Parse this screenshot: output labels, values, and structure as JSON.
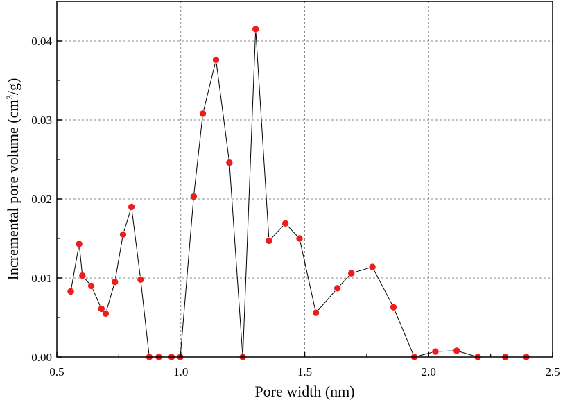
{
  "chart_data": {
    "type": "scatter",
    "title": "",
    "xlabel": "Pore width (nm)",
    "ylabel": {
      "prefix": "Incremental pore volume (cm",
      "superscript": "3",
      "suffix": "/g)"
    },
    "xlim": [
      0.5,
      2.5
    ],
    "ylim": [
      0,
      0.045
    ],
    "xticks": [
      0.5,
      1.0,
      1.5,
      2.0,
      2.5
    ],
    "xtick_labels": [
      "0.5",
      "1.0",
      "1.5",
      "2.0",
      "2.5"
    ],
    "yticks": [
      0,
      0.01,
      0.02,
      0.03,
      0.04
    ],
    "ytick_labels": [
      "0.00",
      "0.01",
      "0.02",
      "0.03",
      "0.04"
    ],
    "grid": true,
    "legend": "none",
    "series": [
      {
        "line_color": "#000000",
        "marker_color": "#ee1c1c",
        "marker": "circle",
        "points": [
          [
            0.556,
            0.0083
          ],
          [
            0.59,
            0.0143
          ],
          [
            0.603,
            0.0103
          ],
          [
            0.639,
            0.009
          ],
          [
            0.68,
            0.0061
          ],
          [
            0.697,
            0.0055
          ],
          [
            0.734,
            0.0095
          ],
          [
            0.767,
            0.0155
          ],
          [
            0.801,
            0.019
          ],
          [
            0.838,
            0.0098
          ],
          [
            0.873,
            0.0
          ],
          [
            0.911,
            0.0
          ],
          [
            0.963,
            0.0
          ],
          [
            0.998,
            0.0
          ],
          [
            1.052,
            0.0203
          ],
          [
            1.089,
            0.0308
          ],
          [
            1.142,
            0.0376
          ],
          [
            1.196,
            0.0246
          ],
          [
            1.25,
            0.0
          ],
          [
            1.302,
            0.0415
          ],
          [
            1.356,
            0.0147
          ],
          [
            1.422,
            0.0169
          ],
          [
            1.479,
            0.015
          ],
          [
            1.545,
            0.0056
          ],
          [
            1.632,
            0.0087
          ],
          [
            1.688,
            0.0106
          ],
          [
            1.773,
            0.0114
          ],
          [
            1.858,
            0.0063
          ],
          [
            1.942,
            0.0
          ],
          [
            2.027,
            0.0007
          ],
          [
            2.113,
            0.0008
          ],
          [
            2.198,
            0.0
          ],
          [
            2.309,
            0.0
          ],
          [
            2.394,
            0.0
          ]
        ]
      }
    ]
  }
}
